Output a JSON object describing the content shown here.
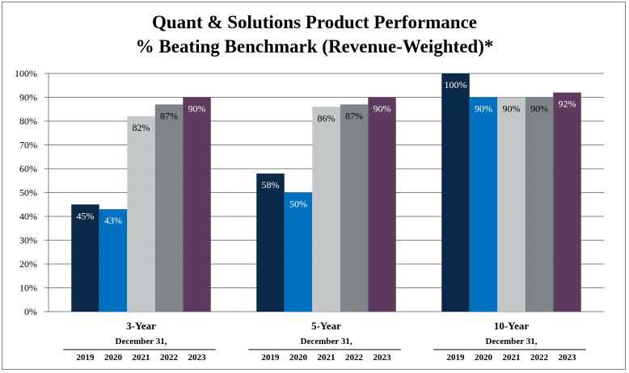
{
  "chart_data": {
    "type": "bar",
    "title": "Quant & Solutions Product Performance",
    "subtitle": "% Beating Benchmark (Revenue-Weighted)*",
    "groups": [
      "3-Year",
      "5-Year",
      "10-Year"
    ],
    "group_sublabel": "December 31,",
    "series": [
      {
        "name": "2019",
        "color": "#0b2a4a",
        "values": [
          45,
          58,
          100
        ]
      },
      {
        "name": "2020",
        "color": "#0070c0",
        "values": [
          43,
          50,
          90
        ]
      },
      {
        "name": "2021",
        "color": "#c4c7c7",
        "values": [
          82,
          86,
          90
        ]
      },
      {
        "name": "2022",
        "color": "#7f8489",
        "values": [
          87,
          87,
          90
        ]
      },
      {
        "name": "2023",
        "color": "#5e3a5e",
        "values": [
          90,
          90,
          92
        ]
      }
    ],
    "data_labels": [
      [
        "45%",
        "58%",
        "100%"
      ],
      [
        "43%",
        "50%",
        "90%"
      ],
      [
        "82%",
        "86%",
        "90%"
      ],
      [
        "87%",
        "87%",
        "90%"
      ],
      [
        "90%",
        "90%",
        "92%"
      ]
    ],
    "label_colors": [
      "#ffffff",
      "#ffffff",
      "#000000",
      "#000000",
      "#ffffff"
    ],
    "ylim": [
      0,
      100
    ],
    "yticks": [
      0,
      10,
      20,
      30,
      40,
      50,
      60,
      70,
      80,
      90,
      100
    ],
    "ytick_labels": [
      "0%",
      "10%",
      "20%",
      "30%",
      "40%",
      "50%",
      "60%",
      "70%",
      "80%",
      "90%",
      "100%"
    ],
    "grid": true
  }
}
